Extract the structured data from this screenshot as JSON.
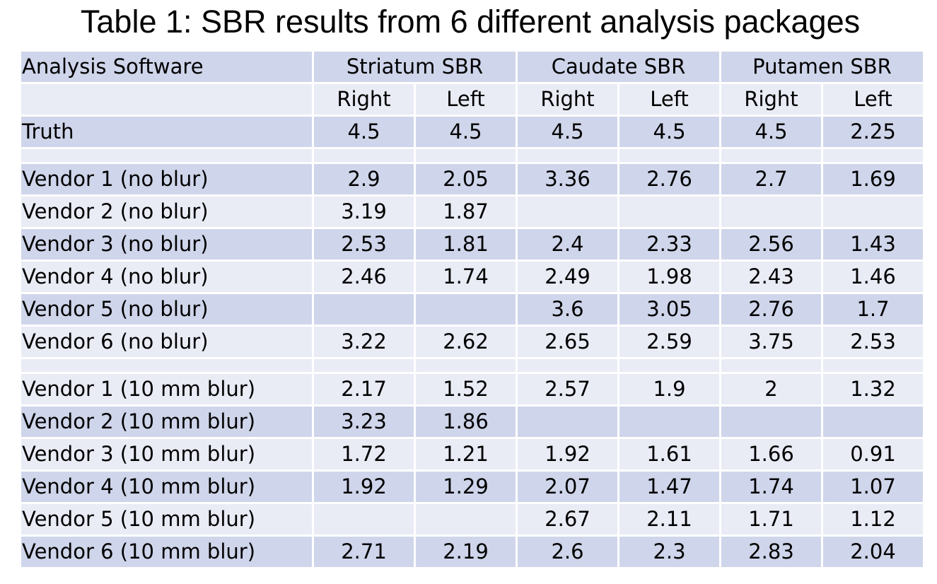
{
  "title": "Table 1: SBR results from 6 different analysis packages",
  "table": {
    "group_headers": {
      "software": "Analysis Software",
      "striatum": "Striatum SBR",
      "caudate": "Caudate SBR",
      "putamen": "Putamen SBR"
    },
    "sub_headers": [
      "Right",
      "Left",
      "Right",
      "Left",
      "Right",
      "Left"
    ],
    "truth": {
      "label": "Truth",
      "values": [
        "4.5",
        "4.5",
        "4.5",
        "4.5",
        "4.5",
        "2.25"
      ]
    },
    "no_blur_rows": [
      {
        "label": "Vendor 1 (no blur)",
        "values": [
          "2.9",
          "2.05",
          "3.36",
          "2.76",
          "2.7",
          "1.69"
        ]
      },
      {
        "label": "Vendor 2 (no blur)",
        "values": [
          "3.19",
          "1.87",
          "",
          "",
          "",
          ""
        ]
      },
      {
        "label": "Vendor 3 (no blur)",
        "values": [
          "2.53",
          "1.81",
          "2.4",
          "2.33",
          "2.56",
          "1.43"
        ]
      },
      {
        "label": "Vendor 4 (no blur)",
        "values": [
          "2.46",
          "1.74",
          "2.49",
          "1.98",
          "2.43",
          "1.46"
        ]
      },
      {
        "label": "Vendor 5 (no blur)",
        "values": [
          "",
          "",
          "3.6",
          "3.05",
          "2.76",
          "1.7"
        ]
      },
      {
        "label": "Vendor 6 (no blur)",
        "values": [
          "3.22",
          "2.62",
          "2.65",
          "2.59",
          "3.75",
          "2.53"
        ]
      }
    ],
    "blur_rows": [
      {
        "label": "Vendor 1 (10 mm blur)",
        "values": [
          "2.17",
          "1.52",
          "2.57",
          "1.9",
          "2",
          "1.32"
        ]
      },
      {
        "label": "Vendor 2 (10 mm blur)",
        "values": [
          "3.23",
          "1.86",
          "",
          "",
          "",
          ""
        ]
      },
      {
        "label": "Vendor 3 (10 mm blur)",
        "values": [
          "1.72",
          "1.21",
          "1.92",
          "1.61",
          "1.66",
          "0.91"
        ]
      },
      {
        "label": "Vendor 4 (10 mm blur)",
        "values": [
          "1.92",
          "1.29",
          "2.07",
          "1.47",
          "1.74",
          "1.07"
        ]
      },
      {
        "label": "Vendor 5 (10 mm blur)",
        "values": [
          "",
          "",
          "2.67",
          "2.11",
          "1.71",
          "1.12"
        ]
      },
      {
        "label": "Vendor 6 (10 mm blur)",
        "values": [
          "2.71",
          "2.19",
          "2.6",
          "2.3",
          "2.83",
          "2.04"
        ]
      }
    ]
  }
}
